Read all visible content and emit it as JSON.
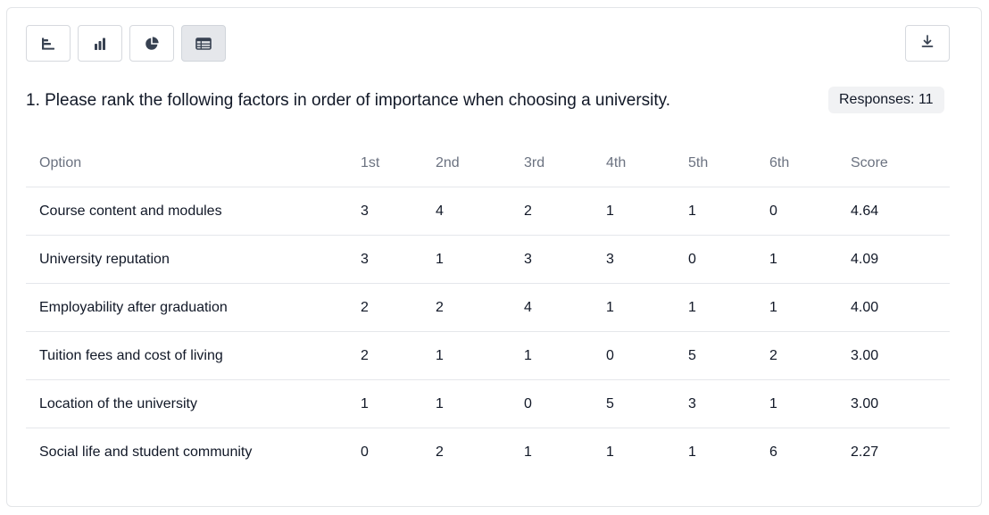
{
  "toolbar": {
    "buttons": [
      {
        "icon": "horizontal-bar-chart-icon",
        "active": false
      },
      {
        "icon": "bar-chart-icon",
        "active": false
      },
      {
        "icon": "pie-chart-icon",
        "active": false
      },
      {
        "icon": "table-icon",
        "active": true
      }
    ],
    "download_icon": "download-icon"
  },
  "question": {
    "title": "1. Please rank the following factors in order of importance when choosing a university.",
    "responses_label": "Responses: 11"
  },
  "table": {
    "headers": [
      "Option",
      "1st",
      "2nd",
      "3rd",
      "4th",
      "5th",
      "6th",
      "Score"
    ],
    "rows": [
      [
        "Course content and modules",
        "3",
        "4",
        "2",
        "1",
        "1",
        "0",
        "4.64"
      ],
      [
        "University reputation",
        "3",
        "1",
        "3",
        "3",
        "0",
        "1",
        "4.09"
      ],
      [
        "Employability after graduation",
        "2",
        "2",
        "4",
        "1",
        "1",
        "1",
        "4.00"
      ],
      [
        "Tuition fees and cost of living",
        "2",
        "1",
        "1",
        "0",
        "5",
        "2",
        "3.00"
      ],
      [
        "Location of the university",
        "1",
        "1",
        "0",
        "5",
        "3",
        "1",
        "3.00"
      ],
      [
        "Social life and student community",
        "0",
        "2",
        "1",
        "1",
        "1",
        "6",
        "2.27"
      ]
    ]
  },
  "colors": {
    "icon": "#374151",
    "header_text": "#6b7280",
    "active_button": "#e5e7eb",
    "badge_bg": "#f1f2f4"
  }
}
